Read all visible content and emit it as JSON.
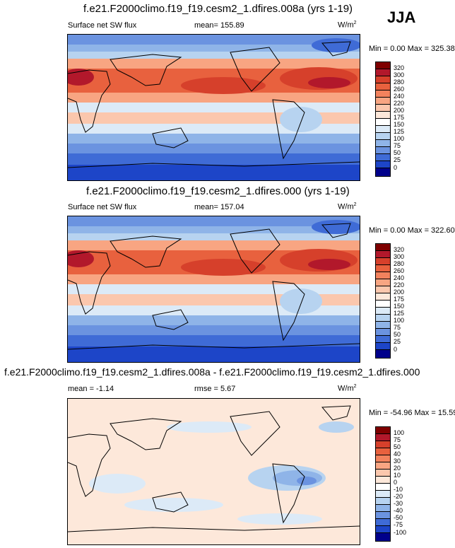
{
  "season": "JJA",
  "chart_data": [
    {
      "type": "heatmap",
      "title": "f.e21.F2000climo.f19_f19.cesm2_1.dfires.008a (yrs 1-19)",
      "left_label": "Surface net SW flux",
      "center_label": "mean= 155.89",
      "units": "W/m",
      "units_exp": "2",
      "minmax": "Min =   0.00 Max = 325.38",
      "levels": [
        "320",
        "300",
        "280",
        "260",
        "240",
        "220",
        "200",
        "175",
        "150",
        "125",
        "100",
        "75",
        "50",
        "25",
        "0"
      ],
      "colors": [
        "#7f0000",
        "#b2182b",
        "#d6402b",
        "#e8613e",
        "#f2825d",
        "#f8a582",
        "#fbc7ad",
        "#fde8da",
        "#ffffff",
        "#dceaf7",
        "#b7d3f0",
        "#8fb4e8",
        "#6b93e0",
        "#3f6bd6",
        "#1d45c8",
        "#00008b"
      ]
    },
    {
      "type": "heatmap",
      "title": "f.e21.F2000climo.f19_f19.cesm2_1.dfires.000 (yrs 1-19)",
      "left_label": "Surface net SW flux",
      "center_label": "mean= 157.04",
      "units": "W/m",
      "units_exp": "2",
      "minmax": "Min =   0.00 Max = 322.60",
      "levels": [
        "320",
        "300",
        "280",
        "260",
        "240",
        "220",
        "200",
        "175",
        "150",
        "125",
        "100",
        "75",
        "50",
        "25",
        "0"
      ],
      "colors": [
        "#7f0000",
        "#b2182b",
        "#d6402b",
        "#e8613e",
        "#f2825d",
        "#f8a582",
        "#fbc7ad",
        "#fde8da",
        "#ffffff",
        "#dceaf7",
        "#b7d3f0",
        "#8fb4e8",
        "#6b93e0",
        "#3f6bd6",
        "#1d45c8",
        "#00008b"
      ]
    },
    {
      "type": "heatmap",
      "title": "f.e21.F2000climo.f19_f19.cesm2_1.dfires.008a - f.e21.F2000climo.f19_f19.cesm2_1.dfires.000",
      "left_label": "mean =   -1.14",
      "center_label": "rmse =   5.67",
      "units": "W/m",
      "units_exp": "2",
      "minmax": "Min = -54.96 Max =  15.59",
      "levels": [
        "100",
        "75",
        "50",
        "40",
        "30",
        "20",
        "10",
        "0",
        "-10",
        "-20",
        "-30",
        "-40",
        "-50",
        "-75",
        "-100"
      ],
      "colors": [
        "#7f0000",
        "#b2182b",
        "#d6402b",
        "#e8613e",
        "#f2825d",
        "#f8a582",
        "#fbc7ad",
        "#fde8da",
        "#ffffff",
        "#dceaf7",
        "#b7d3f0",
        "#8fb4e8",
        "#6b93e0",
        "#3f6bd6",
        "#1d45c8",
        "#00008b"
      ]
    }
  ]
}
